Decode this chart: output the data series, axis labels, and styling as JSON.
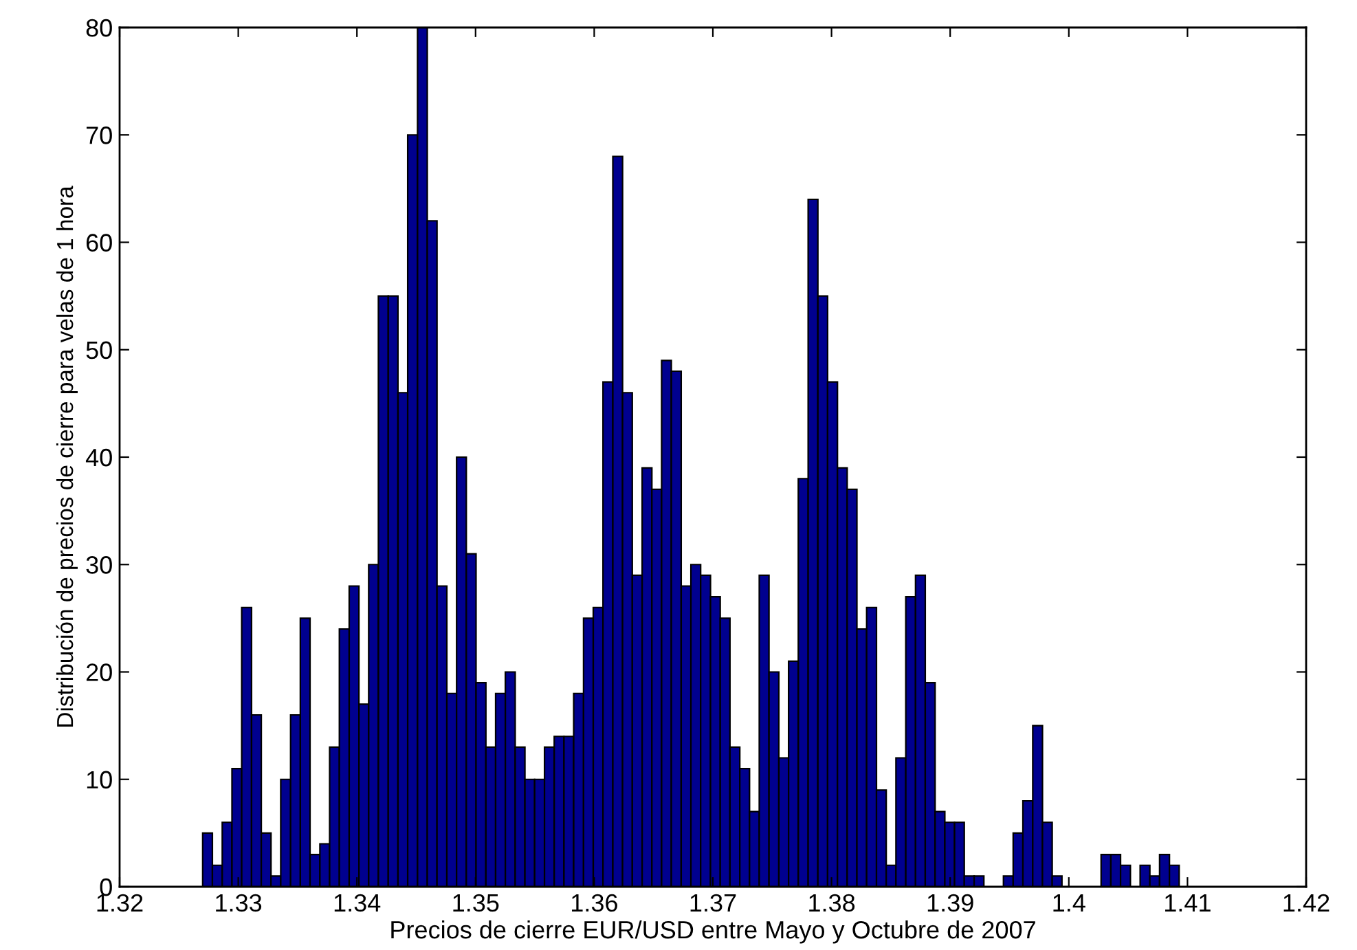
{
  "chart_data": {
    "type": "histogram",
    "xlabel": "Precios de cierre EUR/USD entre Mayo y Octubre de 2007",
    "ylabel": "Distribución de precios de cierre para velas de 1 hora",
    "color": "#00008f",
    "bins": [
      1.327,
      1.32782,
      1.32865,
      1.32947,
      1.33029,
      1.33112,
      1.33194,
      1.33276,
      1.33358,
      1.33441,
      1.33523,
      1.33605,
      1.33688,
      1.3377,
      1.33852,
      1.33935,
      1.34017,
      1.34099,
      1.34181,
      1.34264,
      1.34346,
      1.34428,
      1.34511,
      1.34593,
      1.34675,
      1.34758,
      1.3484,
      1.34922,
      1.35004,
      1.35087,
      1.35169,
      1.35251,
      1.35334,
      1.35416,
      1.35498,
      1.35581,
      1.35663,
      1.35745,
      1.35827,
      1.3591,
      1.35992,
      1.36074,
      1.36157,
      1.36239,
      1.36321,
      1.36404,
      1.36486,
      1.36568,
      1.3665,
      1.36733,
      1.36815,
      1.36897,
      1.3698,
      1.37062,
      1.37144,
      1.37227,
      1.37309,
      1.37391,
      1.37473,
      1.37556,
      1.37638,
      1.3772,
      1.37803,
      1.37885,
      1.37967,
      1.3805,
      1.38132,
      1.38214,
      1.38296,
      1.38379,
      1.38461,
      1.38543,
      1.38626,
      1.38708,
      1.3879,
      1.38873,
      1.38955,
      1.39037,
      1.39119,
      1.39202,
      1.39284,
      1.39366,
      1.39449,
      1.39531,
      1.39613,
      1.39696,
      1.39778,
      1.3986,
      1.39942,
      1.40025,
      1.40107,
      1.40189,
      1.40272,
      1.40354,
      1.40436,
      1.40519,
      1.40601,
      1.40683,
      1.40765,
      1.40848,
      1.4093
    ],
    "values": [
      5,
      2,
      6,
      11,
      26,
      16,
      5,
      1,
      10,
      16,
      25,
      3,
      4,
      13,
      24,
      28,
      17,
      30,
      55,
      55,
      46,
      70,
      80,
      62,
      28,
      18,
      40,
      31,
      19,
      13,
      18,
      20,
      13,
      10,
      10,
      13,
      14,
      14,
      18,
      25,
      26,
      47,
      68,
      46,
      29,
      39,
      37,
      49,
      48,
      28,
      30,
      29,
      27,
      25,
      13,
      11,
      7,
      29,
      20,
      12,
      21,
      38,
      64,
      55,
      47,
      39,
      37,
      24,
      26,
      9,
      2,
      12,
      27,
      29,
      19,
      7,
      6,
      6,
      1,
      1,
      0,
      0,
      1,
      5,
      8,
      15,
      6,
      1,
      0,
      0,
      0,
      0,
      3,
      3,
      2,
      0,
      2,
      1,
      3,
      2
    ],
    "xlim": [
      1.32,
      1.42
    ],
    "xticks": [
      1.32,
      1.33,
      1.34,
      1.35,
      1.36,
      1.37,
      1.38,
      1.39,
      1.4,
      1.41,
      1.42
    ],
    "ylim": [
      0,
      80
    ],
    "yticks": [
      0,
      10,
      20,
      30,
      40,
      50,
      60,
      70,
      80
    ],
    "grid": false
  }
}
